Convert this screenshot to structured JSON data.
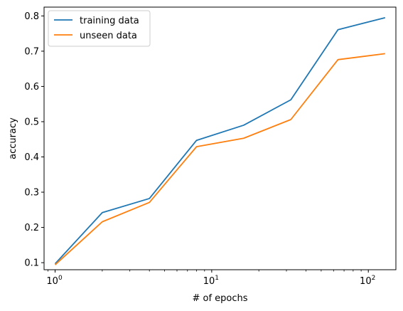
{
  "chart_data": {
    "type": "line",
    "title": "",
    "xlabel": "# of epochs",
    "ylabel": "accuracy",
    "xscale": "log",
    "x": [
      1,
      2,
      4,
      8,
      16,
      32,
      64,
      128
    ],
    "xlim": [
      0.85,
      150
    ],
    "ylim": [
      0.08,
      0.825
    ],
    "xticks": [
      {
        "value": 1,
        "base": "10",
        "exp": "0"
      },
      {
        "value": 10,
        "base": "10",
        "exp": "1"
      },
      {
        "value": 100,
        "base": "10",
        "exp": "2"
      }
    ],
    "yticks": [
      {
        "value": 0.1,
        "label": "0.1"
      },
      {
        "value": 0.2,
        "label": "0.2"
      },
      {
        "value": 0.3,
        "label": "0.3"
      },
      {
        "value": 0.4,
        "label": "0.4"
      },
      {
        "value": 0.5,
        "label": "0.5"
      },
      {
        "value": 0.6,
        "label": "0.6"
      },
      {
        "value": 0.7,
        "label": "0.7"
      },
      {
        "value": 0.8,
        "label": "0.8"
      }
    ],
    "series": [
      {
        "name": "training data",
        "color": "#1f77b4",
        "values": [
          0.097,
          0.242,
          0.282,
          0.447,
          0.49,
          0.562,
          0.761,
          0.795
        ]
      },
      {
        "name": "unseen data",
        "color": "#ff7f0e",
        "values": [
          0.094,
          0.216,
          0.271,
          0.429,
          0.453,
          0.506,
          0.676,
          0.693
        ]
      }
    ],
    "legend": "top-left",
    "grid": false
  }
}
